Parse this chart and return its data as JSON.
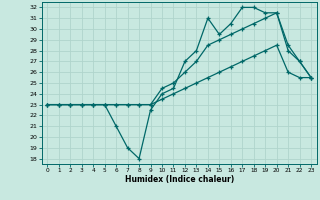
{
  "xlabel": "Humidex (Indice chaleur)",
  "background_color": "#c8e8e0",
  "grid_color": "#b0d4cc",
  "line_color": "#006868",
  "xvalues": [
    0,
    1,
    2,
    3,
    4,
    5,
    6,
    7,
    8,
    9,
    10,
    11,
    12,
    13,
    14,
    15,
    16,
    17,
    18,
    19,
    20,
    21,
    22,
    23
  ],
  "y_main": [
    23,
    23,
    23,
    23,
    23,
    23,
    21,
    19,
    18,
    22.5,
    24,
    24.5,
    27,
    28,
    31,
    29.5,
    30.5,
    32,
    32,
    31.5,
    31.5,
    28,
    27,
    25.5
  ],
  "y_upper": [
    23,
    23,
    23,
    23,
    23,
    23,
    23,
    23,
    23,
    23,
    24.5,
    25,
    26,
    27,
    28.5,
    29,
    29.5,
    30,
    30.5,
    31,
    31.5,
    28.5,
    27,
    25.5
  ],
  "y_lower": [
    23,
    23,
    23,
    23,
    23,
    23,
    23,
    23,
    23,
    23,
    23.5,
    24,
    24.5,
    25,
    25.5,
    26,
    26.5,
    27,
    27.5,
    28,
    28.5,
    26,
    25.5,
    25.5
  ],
  "ylim": [
    17.5,
    32.5
  ],
  "xlim": [
    -0.5,
    23.5
  ],
  "ytick_vals": [
    18,
    19,
    20,
    21,
    22,
    23,
    24,
    25,
    26,
    27,
    28,
    29,
    30,
    31,
    32
  ],
  "xtick_vals": [
    0,
    1,
    2,
    3,
    4,
    5,
    6,
    7,
    8,
    9,
    10,
    11,
    12,
    13,
    14,
    15,
    16,
    17,
    18,
    19,
    20,
    21,
    22,
    23
  ]
}
